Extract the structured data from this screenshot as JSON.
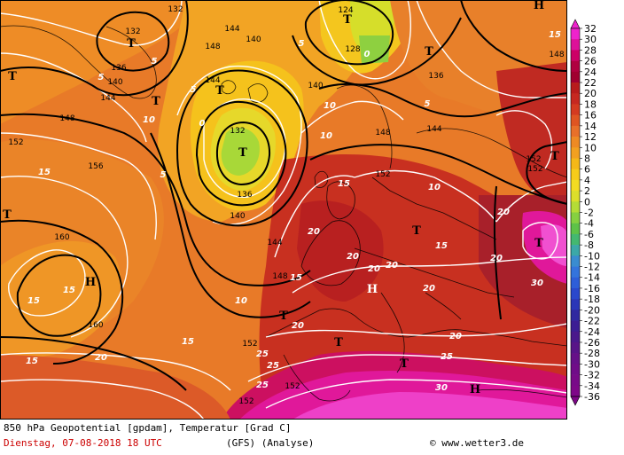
{
  "title": "850 hPa Geopotential [gpdam], Temperatur [Grad C]",
  "date": "Dienstag, 07-08-2018  18 UTC",
  "model": "(GFS)  (Analyse)",
  "credit": "© www.wetter3.de",
  "legend": {
    "ticks": [
      "32",
      "30",
      "28",
      "26",
      "24",
      "22",
      "20",
      "18",
      "16",
      "14",
      "12",
      "10",
      "8",
      "6",
      "4",
      "2",
      "0",
      "-2",
      "-4",
      "-6",
      "-8",
      "-10",
      "-12",
      "-14",
      "-16",
      "-18",
      "-20",
      "-22",
      "-24",
      "-26",
      "-28",
      "-30",
      "-32",
      "-34",
      "-36"
    ],
    "colors": [
      "#ee22cc",
      "#dd1199",
      "#cc0066",
      "#b00040",
      "#a00030",
      "#b81c1c",
      "#c62820",
      "#d43a20",
      "#df5522",
      "#e8702a",
      "#ee8a24",
      "#f2a020",
      "#f4b818",
      "#f6cc1a",
      "#f2dc22",
      "#dcde2a",
      "#b4dc36",
      "#86d040",
      "#5ec248",
      "#44b870",
      "#3ca8a8",
      "#3a8cd0",
      "#3474dc",
      "#2e5ed8",
      "#2a48cc",
      "#2a36b8",
      "#3028a0",
      "#3c1e94",
      "#4a188c",
      "#581488",
      "#661088",
      "#700c88",
      "#780a88",
      "#7e0888"
    ]
  },
  "highs": [
    "H",
    "H",
    "H",
    "H"
  ],
  "lows": [
    "T",
    "T",
    "T",
    "T",
    "T",
    "T",
    "T",
    "T",
    "T",
    "T",
    "T",
    "T",
    "T",
    "T"
  ],
  "geo_labels": [
    "124",
    "128",
    "132",
    "132",
    "132",
    "136",
    "136",
    "136",
    "140",
    "140",
    "140",
    "140",
    "144",
    "144",
    "144",
    "144",
    "144",
    "148",
    "148",
    "148",
    "148",
    "148",
    "152",
    "152",
    "152",
    "152",
    "152",
    "152",
    "152",
    "156",
    "160",
    "160"
  ],
  "temp_labels": [
    "15",
    "15",
    "15",
    "15",
    "15",
    "15",
    "15",
    "15",
    "15",
    "10",
    "10",
    "10",
    "10",
    "10",
    "5",
    "5",
    "5",
    "5",
    "5",
    "5",
    "0",
    "0",
    "20",
    "20",
    "20",
    "20",
    "20",
    "20",
    "20",
    "20",
    "20",
    "20",
    "25",
    "25",
    "25",
    "25",
    "30",
    "30"
  ]
}
